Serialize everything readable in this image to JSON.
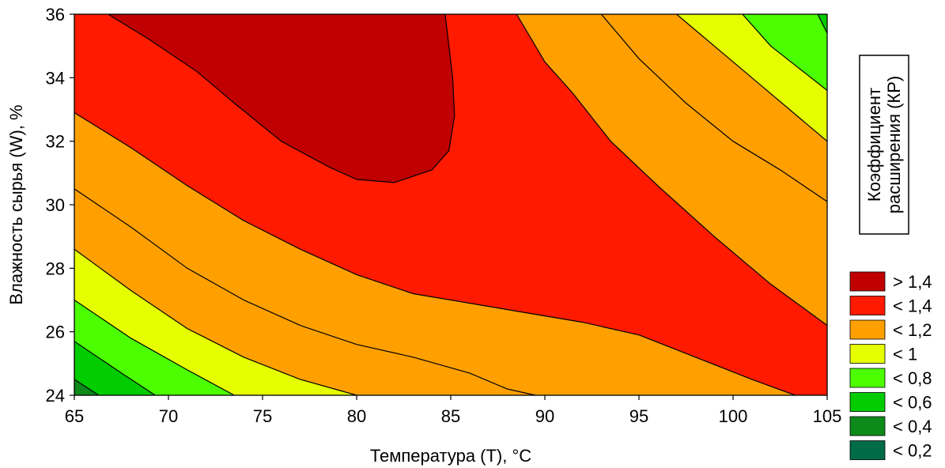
{
  "chart_data": {
    "type": "contour",
    "xlabel": "Температура (T), °C",
    "ylabel": "Влажность сырья (W), %",
    "xlim": [
      65,
      105
    ],
    "ylim": [
      24,
      36
    ],
    "xticks": [
      "65",
      "70",
      "75",
      "80",
      "85",
      "90",
      "95",
      "100",
      "105"
    ],
    "yticks": [
      "24",
      "26",
      "28",
      "30",
      "32",
      "34",
      "36"
    ],
    "legend_title": "Коэффициент расширения (КР)",
    "legend_position": "right",
    "legend": [
      {
        "label": "> 1,4",
        "color": "#c00000"
      },
      {
        "label": "< 1,4",
        "color": "#ff1a00"
      },
      {
        "label": "< 1,2",
        "color": "#ffa000"
      },
      {
        "label": "< 1",
        "color": "#e6ff00"
      },
      {
        "label": "< 0,8",
        "color": "#4cff00"
      },
      {
        "label": "< 0,6",
        "color": "#00cc00"
      },
      {
        "label": "< 0,4",
        "color": "#0d8a1a"
      },
      {
        "label": "< 0,2",
        "color": "#006b47"
      }
    ],
    "contours": {
      "c1_4_upper": [
        [
          66.8,
          36
        ],
        [
          69,
          35.2
        ],
        [
          71.5,
          34.2
        ],
        [
          73.5,
          33.2
        ],
        [
          76,
          32
        ],
        [
          78.5,
          31.2
        ],
        [
          80,
          30.8
        ],
        [
          82,
          30.7
        ],
        [
          84,
          31.1
        ],
        [
          84.9,
          31.7
        ],
        [
          85.2,
          32.8
        ],
        [
          85.1,
          34
        ],
        [
          84.7,
          36
        ]
      ],
      "c1_4_right": [
        [
          88.5,
          36
        ],
        [
          90,
          34.5
        ],
        [
          91.5,
          33.5
        ],
        [
          93.5,
          32
        ],
        [
          96,
          30.6
        ],
        [
          99,
          29
        ],
        [
          102,
          27.5
        ],
        [
          105,
          26.2
        ]
      ],
      "c1_4_left": [
        [
          65,
          32.9
        ],
        [
          68,
          31.8
        ],
        [
          71,
          30.6
        ],
        [
          74,
          29.5
        ],
        [
          77,
          28.6
        ],
        [
          80,
          27.8
        ],
        [
          83,
          27.2
        ],
        [
          86,
          26.9
        ],
        [
          89,
          26.6
        ],
        [
          92,
          26.3
        ],
        [
          95,
          25.9
        ],
        [
          98,
          25.2
        ],
        [
          101,
          24.5
        ],
        [
          103.3,
          24
        ]
      ],
      "c1_2_left": [
        [
          65,
          30.5
        ],
        [
          68,
          29.3
        ],
        [
          71,
          28
        ],
        [
          74,
          27
        ],
        [
          77,
          26.2
        ],
        [
          80,
          25.6
        ],
        [
          83,
          25.2
        ],
        [
          86,
          24.7
        ],
        [
          88,
          24.2
        ],
        [
          89.5,
          24
        ]
      ],
      "c1_2_right": [
        [
          93,
          36
        ],
        [
          95,
          34.6
        ],
        [
          97.5,
          33.2
        ],
        [
          100,
          32
        ],
        [
          102.5,
          31.1
        ],
        [
          105,
          30.1
        ]
      ],
      "c1_0_left": [
        [
          65,
          28.6
        ],
        [
          68,
          27.3
        ],
        [
          71,
          26.1
        ],
        [
          74,
          25.2
        ],
        [
          77,
          24.5
        ],
        [
          80,
          24
        ]
      ],
      "c1_0_right": [
        [
          97,
          36
        ],
        [
          99,
          35
        ],
        [
          101,
          34
        ],
        [
          103,
          33
        ],
        [
          105,
          32
        ]
      ],
      "c0_8_left": [
        [
          65,
          27
        ],
        [
          68,
          25.8
        ],
        [
          71,
          24.8
        ],
        [
          73.5,
          24
        ]
      ],
      "c0_8_right": [
        [
          100.5,
          36
        ],
        [
          102,
          35
        ],
        [
          103.5,
          34.3
        ],
        [
          105,
          33.6
        ]
      ],
      "c0_6_left": [
        [
          65,
          25.7
        ],
        [
          67.5,
          24.7
        ],
        [
          69.3,
          24
        ]
      ],
      "c0_6_right": [
        [
          104.5,
          36
        ],
        [
          105,
          35.4
        ]
      ],
      "c0_4_left": [
        [
          65,
          24.5
        ],
        [
          66.3,
          24
        ]
      ]
    }
  }
}
